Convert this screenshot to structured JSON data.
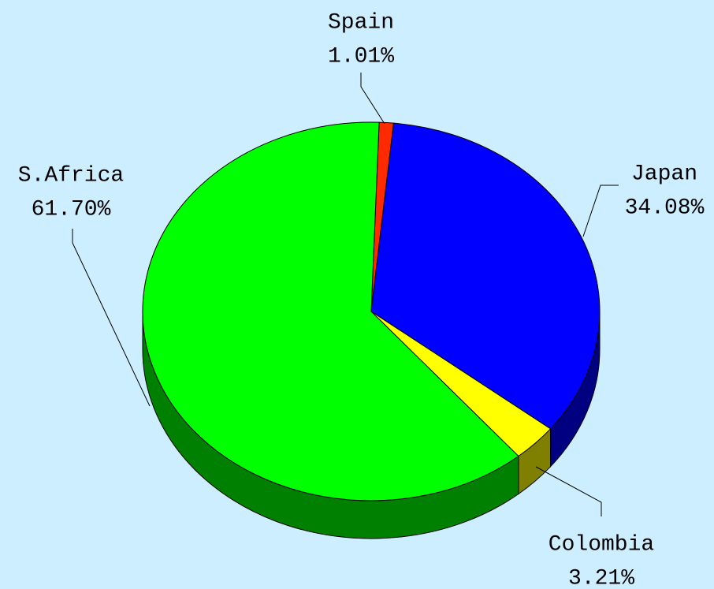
{
  "chart_data": {
    "type": "pie",
    "categories": [
      "Spain",
      "Japan",
      "Colombia",
      "S.Africa"
    ],
    "values": [
      1.01,
      34.08,
      3.21,
      61.7
    ],
    "value_labels": [
      "1.01%",
      "34.08%",
      "3.21%",
      "61.70%"
    ],
    "colors": [
      "#ff2a00",
      "#0000ff",
      "#ffff00",
      "#00ff00"
    ]
  }
}
